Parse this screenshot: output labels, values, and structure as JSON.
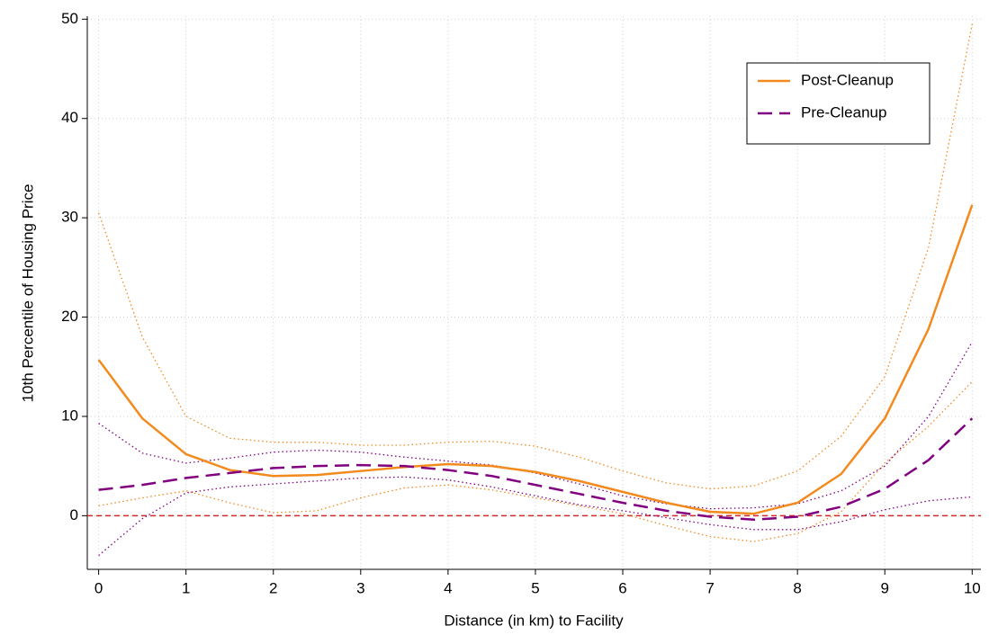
{
  "chart_data": {
    "type": "line",
    "xlabel": "Distance (in km) to Facility",
    "ylabel": "10th Percentile of Housing Price",
    "x": [
      0,
      0.5,
      1,
      1.5,
      2,
      2.5,
      3,
      3.5,
      4,
      4.5,
      5,
      5.5,
      6,
      6.5,
      7,
      7.5,
      8,
      8.5,
      9,
      9.5,
      10
    ],
    "xlim": [
      -0.13,
      10.1
    ],
    "xticks": [
      0,
      1,
      2,
      3,
      4,
      5,
      6,
      7,
      8,
      9,
      10
    ],
    "ylim": [
      -5.4,
      50.3
    ],
    "yticks": [
      0,
      10,
      20,
      30,
      40,
      50
    ],
    "grid": true,
    "legend": "top-right",
    "reference_line": {
      "y": 0,
      "color": "#d62728"
    },
    "series": [
      {
        "name": "Post-Cleanup",
        "color": "#f28a1e",
        "style": "solid",
        "values": [
          15.7,
          9.8,
          6.2,
          4.6,
          4.0,
          4.1,
          4.5,
          4.9,
          5.2,
          5.0,
          4.4,
          3.5,
          2.4,
          1.3,
          0.4,
          0.2,
          1.3,
          4.2,
          9.8,
          18.8,
          31.3
        ]
      },
      {
        "name": "Pre-Cleanup",
        "color": "#800080",
        "style": "dashed",
        "values": [
          2.6,
          3.1,
          3.8,
          4.3,
          4.8,
          5.0,
          5.1,
          5.0,
          4.6,
          4.0,
          3.1,
          2.2,
          1.3,
          0.5,
          -0.1,
          -0.4,
          -0.1,
          0.9,
          2.7,
          5.6,
          9.8
        ]
      },
      {
        "color": "#f28a1e",
        "style": "dotted",
        "values": [
          30.5,
          18,
          10,
          7.8,
          7.4,
          7.4,
          7.1,
          7.1,
          7.4,
          7.5,
          7.0,
          5.9,
          4.5,
          3.3,
          2.7,
          3.0,
          4.5,
          8,
          14,
          27,
          49.5
        ]
      },
      {
        "color": "#f28a1e",
        "style": "dotted",
        "values": [
          1.0,
          1.8,
          2.5,
          1.3,
          0.3,
          0.5,
          1.8,
          2.8,
          3.1,
          2.6,
          1.8,
          1.0,
          0.2,
          -1,
          -2.1,
          -2.6,
          -1.8,
          0.4,
          5.3,
          9,
          13.5
        ]
      },
      {
        "color": "#800080",
        "style": "dotted",
        "values": [
          9.3,
          6.3,
          5.3,
          5.8,
          6.4,
          6.6,
          6.4,
          5.9,
          5.5,
          5.1,
          4.3,
          3.2,
          2.0,
          1.2,
          0.7,
          0.8,
          1.2,
          2.5,
          5,
          10,
          17.5
        ]
      },
      {
        "color": "#800080",
        "style": "dotted",
        "values": [
          -4,
          -0.3,
          2.3,
          2.9,
          3.2,
          3.5,
          3.8,
          3.9,
          3.6,
          2.9,
          2.0,
          1.1,
          0.5,
          -0.2,
          -0.9,
          -1.4,
          -1.4,
          -0.6,
          0.6,
          1.5,
          1.9
        ]
      }
    ]
  }
}
